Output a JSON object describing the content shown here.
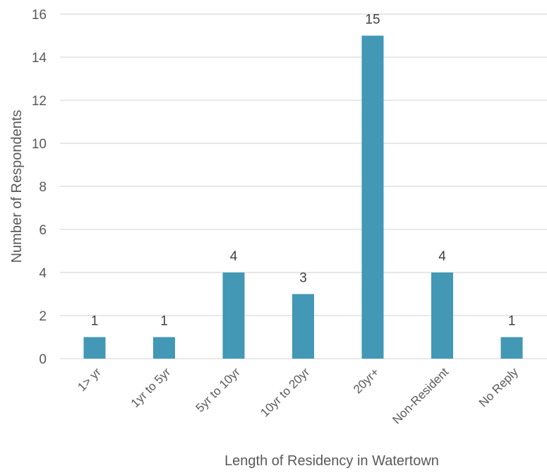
{
  "chart_data": {
    "type": "bar",
    "title": "",
    "xlabel": "Length of Residency in Watertown",
    "ylabel": "Number of Respondents",
    "categories": [
      "1> yr",
      "1yr to 5yr",
      "5yr to 10yr",
      "10yr to 20yr",
      "20yr+",
      "Non-Resident",
      "No Reply"
    ],
    "values": [
      1,
      1,
      4,
      3,
      15,
      4,
      1
    ],
    "ylim": [
      0,
      16
    ],
    "yticks": [
      "0",
      "2",
      "4",
      "6",
      "8",
      "10",
      "12",
      "14",
      "16"
    ],
    "grid": true,
    "legend": "none",
    "bar_color": "#4298B5",
    "grid_color": "#D9D9D9"
  }
}
